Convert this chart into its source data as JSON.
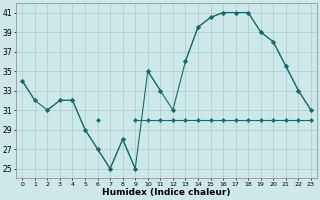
{
  "xlabel": "Humidex (Indice chaleur)",
  "background_color": "#cce8e8",
  "grid_color": "#aacccc",
  "line_color": "#1a6b6b",
  "x": [
    0,
    1,
    2,
    3,
    4,
    5,
    6,
    7,
    8,
    9,
    10,
    11,
    12,
    13,
    14,
    15,
    16,
    17,
    18,
    19,
    20,
    21,
    22,
    23
  ],
  "line1": [
    34,
    32,
    null,
    null,
    null,
    null,
    null,
    null,
    null,
    null,
    35,
    33,
    null,
    36,
    39.5,
    40.5,
    41,
    41,
    41,
    39,
    38,
    35.5,
    33,
    31
  ],
  "line2": [
    null,
    null,
    31,
    32,
    32,
    29,
    27,
    25,
    28,
    25,
    null,
    null,
    31,
    null,
    null,
    null,
    null,
    null,
    null,
    null,
    null,
    null,
    null,
    null
  ],
  "line3": [
    null,
    null,
    null,
    null,
    32,
    null,
    30,
    null,
    null,
    30,
    30,
    30,
    30,
    30,
    30,
    30,
    30,
    30,
    30,
    30,
    30,
    30,
    30,
    30
  ],
  "line_full": [
    34,
    32,
    31,
    32,
    32,
    29,
    27,
    25,
    28,
    25,
    35,
    33,
    31,
    36,
    39.5,
    40.5,
    41,
    41,
    41,
    39,
    38,
    35.5,
    33,
    31
  ],
  "ylim": [
    24,
    42
  ],
  "xlim": [
    -0.5,
    23.5
  ],
  "yticks": [
    25,
    27,
    29,
    31,
    33,
    35,
    37,
    39,
    41
  ]
}
